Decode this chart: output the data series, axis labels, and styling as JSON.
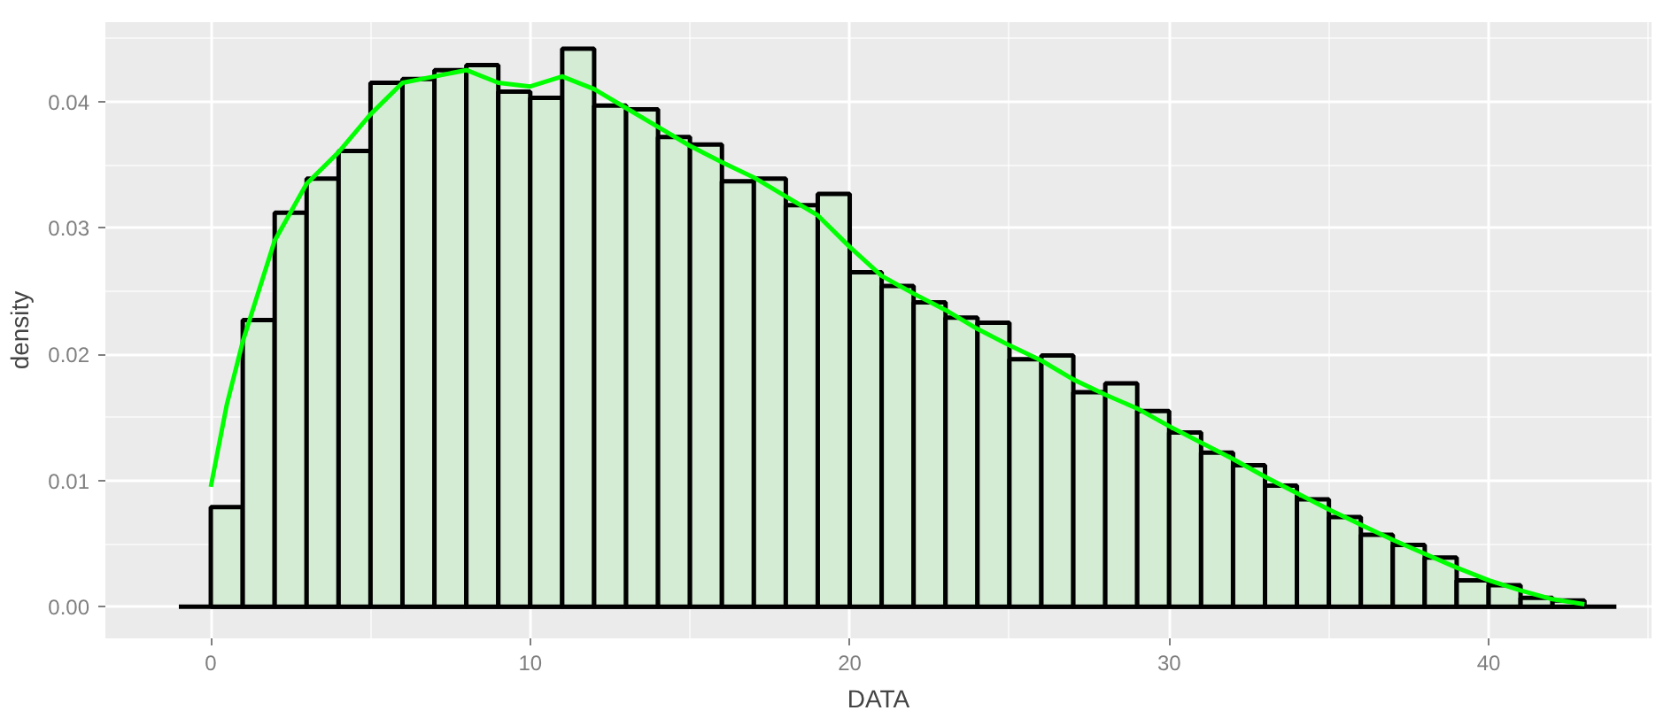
{
  "chart_data": {
    "type": "histogram",
    "xlabel": "DATA",
    "ylabel": "density",
    "bins": [
      -1,
      0,
      1,
      2,
      3,
      4,
      5,
      6,
      7,
      8,
      9,
      10,
      11,
      12,
      13,
      14,
      15,
      16,
      17,
      18,
      19,
      20,
      21,
      22,
      23,
      24,
      25,
      26,
      27,
      28,
      29,
      30,
      31,
      32,
      33,
      34,
      35,
      36,
      37,
      38,
      39,
      40,
      41,
      42,
      43,
      44
    ],
    "series": [
      {
        "color": "#d4ebd4",
        "values": [
          0,
          0.0079,
          0.0227,
          0.0312,
          0.0339,
          0.0361,
          0.0415,
          0.0418,
          0.0425,
          0.0429,
          0.0408,
          0.0403,
          0.0442,
          0.0397,
          0.0394,
          0.0372,
          0.0366,
          0.0337,
          0.0339,
          0.0318,
          0.0327,
          0.0265,
          0.0254,
          0.0241,
          0.0229,
          0.0225,
          0.0196,
          0.0199,
          0.017,
          0.0177,
          0.0155,
          0.0138,
          0.0122,
          0.0112,
          0.0096,
          0.0085,
          0.0071,
          0.0057,
          0.0049,
          0.0039,
          0.0021,
          0.0017,
          0.0007,
          0.0005,
          0
        ]
      },
      {
        "type": "line",
        "color": "#00ff00",
        "x": [
          0,
          0.5,
          1,
          1.5,
          2,
          3,
          4,
          5,
          6,
          7,
          8,
          9,
          10,
          11,
          12,
          13,
          14,
          15,
          16,
          17,
          18,
          19,
          20,
          21,
          22,
          23,
          24,
          25,
          26,
          27,
          28,
          29,
          30,
          31,
          32,
          33,
          34,
          35,
          36,
          37,
          38,
          39,
          40,
          41,
          42,
          43
        ],
        "values": [
          0.0095,
          0.016,
          0.021,
          0.025,
          0.029,
          0.0335,
          0.036,
          0.039,
          0.0415,
          0.042,
          0.0425,
          0.0415,
          0.0412,
          0.042,
          0.041,
          0.0395,
          0.038,
          0.0365,
          0.0352,
          0.034,
          0.0325,
          0.031,
          0.0285,
          0.0262,
          0.0248,
          0.0235,
          0.022,
          0.0207,
          0.0195,
          0.018,
          0.0168,
          0.0157,
          0.0143,
          0.013,
          0.0117,
          0.0103,
          0.009,
          0.0077,
          0.0065,
          0.0053,
          0.0042,
          0.0031,
          0.0021,
          0.0013,
          0.0006,
          0.0002
        ]
      }
    ],
    "xlim": [
      -3.3,
      45.1
    ],
    "ylim": [
      -0.0025,
      0.0463
    ],
    "xticks": [
      0,
      10,
      20,
      30,
      40
    ],
    "yticks": [
      {
        "value": 0,
        "label": "0.00"
      },
      {
        "value": 0.01,
        "label": "0.01"
      },
      {
        "value": 0.02,
        "label": "0.02"
      },
      {
        "value": 0.03,
        "label": "0.03"
      },
      {
        "value": 0.04,
        "label": "0.04"
      }
    ],
    "grid": true
  }
}
